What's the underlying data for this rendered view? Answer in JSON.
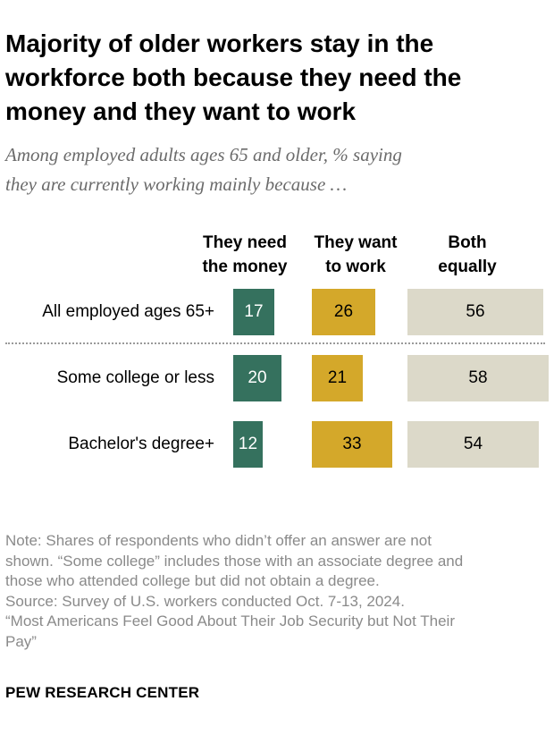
{
  "title": "Majority of older workers stay in the workforce both because they need the money and they want to work",
  "title_lines": [
    "Majority of older workers stay in the",
    "workforce both because they need the",
    "money and they want to work"
  ],
  "subtitle_lines": [
    "Among employed adults ages 65 and older, % saying",
    "they are currently working mainly because …"
  ],
  "colors": {
    "need_money": "#35715e",
    "want_work": "#d4a82a",
    "both": "#dcd9c9",
    "divider": "#9a9a9a",
    "note_text": "#8a8a8a"
  },
  "chart_data": {
    "type": "bar",
    "orientation": "horizontal",
    "categories": [
      "All employed ages 65+",
      "Some college or less",
      "Bachelor's degree+"
    ],
    "column_headers": [
      [
        "They need",
        "the money"
      ],
      [
        "They want",
        "to work"
      ],
      [
        "Both",
        "equally"
      ]
    ],
    "series": [
      {
        "name": "They need the money",
        "values": [
          17,
          20,
          12
        ]
      },
      {
        "name": "They want to work",
        "values": [
          26,
          21,
          33
        ]
      },
      {
        "name": "Both equally",
        "values": [
          56,
          58,
          54
        ]
      }
    ],
    "unit": "%"
  },
  "notes": [
    "Note: Shares of respondents who didn’t offer an answer are not",
    "shown. “Some college” includes those with an associate degree and",
    "those who attended college but did not obtain a degree.",
    "Source: Survey of U.S. workers conducted Oct. 7-13, 2024.",
    "“Most Americans Feel Good About Their Job Security but Not Their",
    "Pay”"
  ],
  "brand": "PEW RESEARCH CENTER"
}
